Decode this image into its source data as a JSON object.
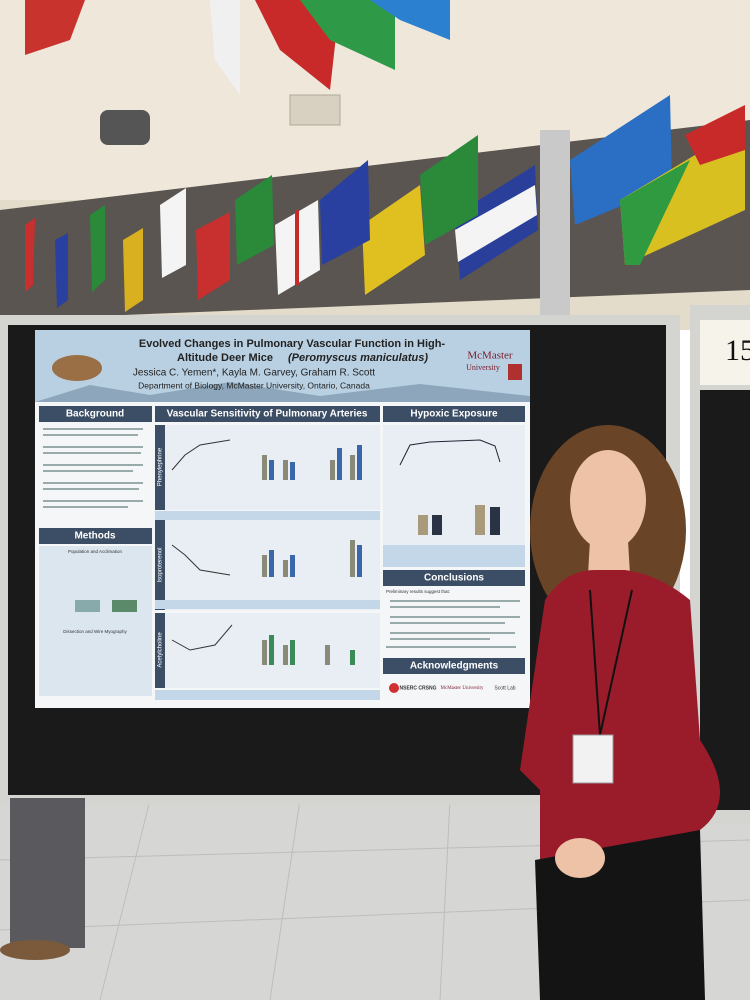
{
  "board_number": "15",
  "poster": {
    "title_lines": [
      "Evolved Changes in Pulmonary Vascular Function in High-",
      "Altitude Deer Mice"
    ],
    "title_species": "(Peromyscus maniculatus)",
    "authors": "Jessica C. Yemen*, Kayla M. Garvey, Graham R. Scott",
    "affiliation": "Department of Biology, McMaster University, Ontario, Canada",
    "logo": [
      "McMaster",
      "University"
    ],
    "sections": {
      "background": "Background",
      "methods": "Methods",
      "vascular": "Vascular Sensitivity of Pulmonary Arteries",
      "hypoxic": "Hypoxic Exposure",
      "conclusions": "Conclusions",
      "acknowledgments": "Acknowledgments"
    },
    "methods_subheadings": [
      "Population and Acclimation",
      "Dissection and Wire Myography"
    ],
    "drug_labels": [
      "Phenylephrine",
      "Isoproterenol",
      "Acetylcholine"
    ],
    "conclusions_intro": "Preliminary results suggest that:",
    "sponsors": [
      "NSERC CRSNG",
      "McMaster University",
      "Scott Lab"
    ]
  }
}
